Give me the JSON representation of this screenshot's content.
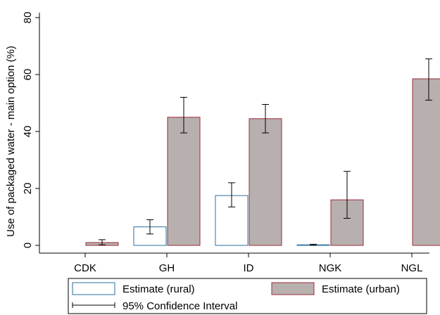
{
  "chart_data": {
    "type": "bar",
    "title": "",
    "xlabel": "",
    "ylabel": "Use of packaged water - main option (%)",
    "ylim": [
      0,
      80
    ],
    "yticks": [
      0,
      20,
      40,
      60,
      80
    ],
    "grid": false,
    "legend_position": "bottom",
    "categories": [
      "CDK",
      "GH",
      "ID",
      "NGK",
      "NGL"
    ],
    "series": [
      {
        "name": "Estimate (rural)",
        "fill": "#ffffff",
        "stroke": "#2a6f9e",
        "values": [
          null,
          6.5,
          17.5,
          0.2,
          null
        ],
        "ci_low": [
          null,
          4.0,
          13.5,
          0.0,
          null
        ],
        "ci_high": [
          null,
          9.0,
          22.0,
          0.4,
          null
        ]
      },
      {
        "name": "Estimate (urban)",
        "fill": "#b8b0ae",
        "stroke": "#9b2b3b",
        "values": [
          1.0,
          45.0,
          44.5,
          16.0,
          58.5
        ],
        "ci_low": [
          0.2,
          39.5,
          39.5,
          9.5,
          51.0
        ],
        "ci_high": [
          2.0,
          52.0,
          49.5,
          26.0,
          65.5
        ]
      }
    ],
    "legend": {
      "ci_label": "95% Confidence Interval"
    },
    "colors": {
      "axis": "#000000",
      "error_bar": "#000000"
    }
  }
}
